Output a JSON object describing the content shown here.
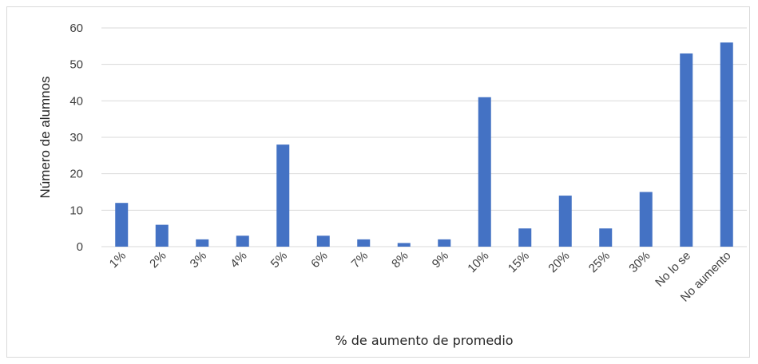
{
  "chart_data": {
    "type": "bar",
    "categories": [
      "1%",
      "2%",
      "3%",
      "4%",
      "5%",
      "6%",
      "7%",
      "8%",
      "9%",
      "10%",
      "15%",
      "20%",
      "25%",
      "30%",
      "No lo se",
      "No aumento"
    ],
    "values": [
      12,
      6,
      2,
      3,
      28,
      3,
      2,
      1,
      2,
      41,
      5,
      14,
      5,
      15,
      53,
      56
    ],
    "xlabel": "% de aumento de promedio",
    "ylabel": "Número de alumnos",
    "ylim": [
      0,
      60
    ],
    "yticks": [
      0,
      10,
      20,
      30,
      40,
      50,
      60
    ],
    "grid": true,
    "legend": "none",
    "bar_color": "#4472c4",
    "grid_color": "#d9d9d9"
  }
}
